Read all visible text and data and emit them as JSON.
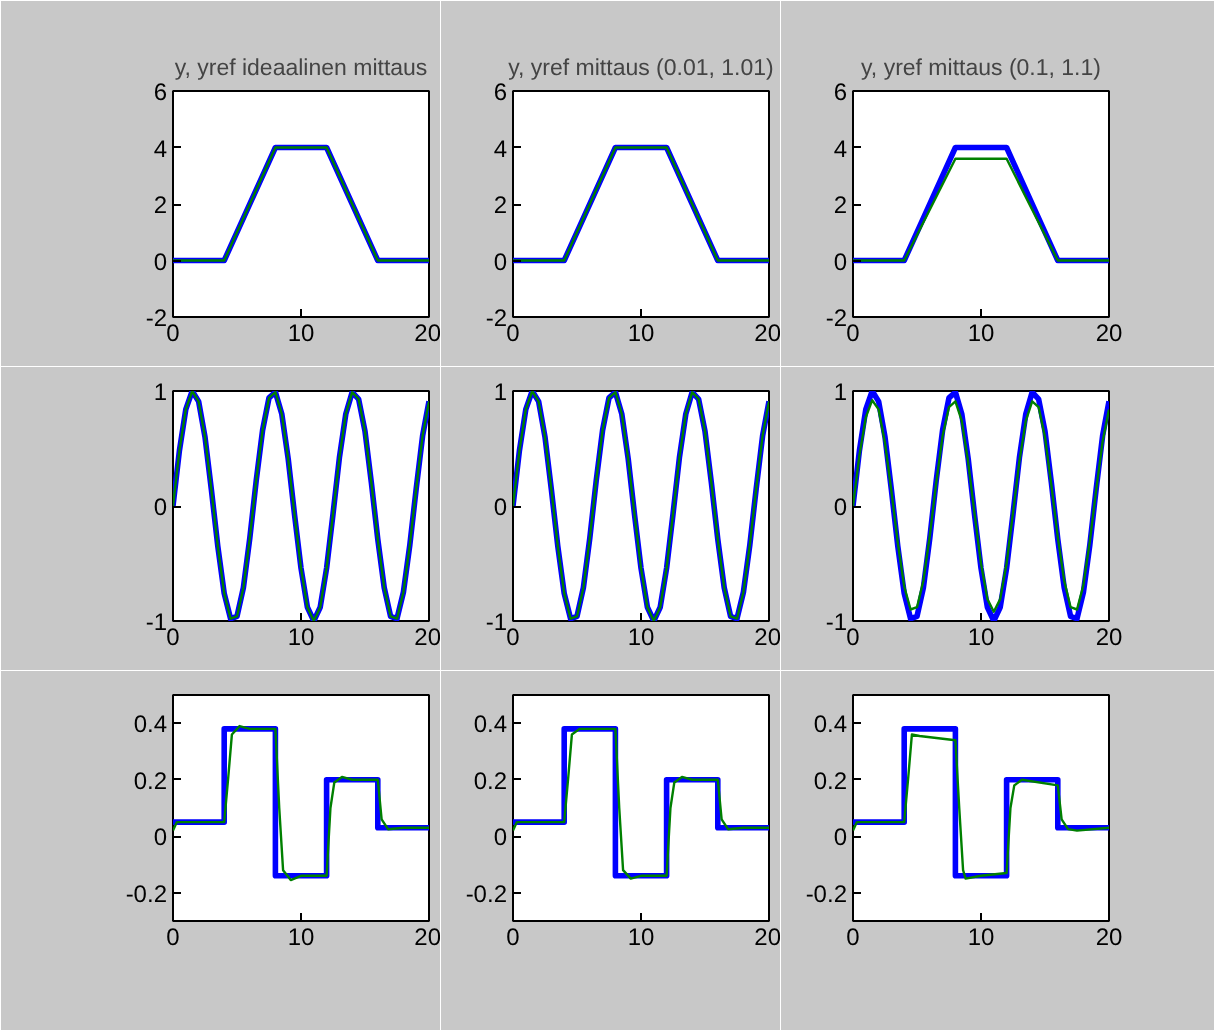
{
  "chart_data": [
    {
      "type": "line",
      "title": "y, yref ideaalinen mittaus",
      "xlim": [
        0,
        20
      ],
      "xticks": [
        0,
        10,
        20
      ],
      "ylim": [
        -2,
        6
      ],
      "yticks": [
        -2,
        0,
        2,
        4,
        6
      ],
      "series": [
        {
          "color": "#0000ff",
          "x": [
            0,
            4,
            8,
            12,
            16,
            20
          ],
          "values": [
            0,
            0,
            4,
            4,
            0,
            0
          ]
        },
        {
          "color": "#008000",
          "x": [
            0,
            4,
            8,
            12,
            16,
            20
          ],
          "values": [
            0,
            0,
            4,
            4,
            0,
            0
          ]
        }
      ]
    },
    {
      "type": "line",
      "title": "y, yref mittaus (0.01, 1.01)",
      "xlim": [
        0,
        20
      ],
      "xticks": [
        0,
        10,
        20
      ],
      "ylim": [
        -2,
        6
      ],
      "yticks": [
        -2,
        0,
        2,
        4,
        6
      ],
      "series": [
        {
          "color": "#0000ff",
          "x": [
            0,
            4,
            8,
            12,
            16,
            20
          ],
          "values": [
            0,
            0,
            4,
            4,
            0,
            0
          ]
        },
        {
          "color": "#008000",
          "x": [
            0,
            4,
            8,
            12,
            16,
            20
          ],
          "values": [
            0,
            0,
            4,
            4,
            0,
            0
          ]
        }
      ]
    },
    {
      "type": "line",
      "title": "y, yref mittaus (0.1, 1.1)",
      "xlim": [
        0,
        20
      ],
      "xticks": [
        0,
        10,
        20
      ],
      "ylim": [
        -2,
        6
      ],
      "yticks": [
        -2,
        0,
        2,
        4,
        6
      ],
      "series": [
        {
          "color": "#0000ff",
          "x": [
            0,
            4,
            8,
            12,
            16,
            20
          ],
          "values": [
            0,
            0,
            4,
            4,
            0,
            0
          ]
        },
        {
          "color": "#008000",
          "x": [
            0,
            4,
            8,
            12,
            16,
            20
          ],
          "values": [
            0,
            0,
            3.6,
            3.6,
            0,
            0
          ]
        }
      ]
    },
    {
      "type": "line",
      "xlim": [
        0,
        20
      ],
      "xticks": [
        0,
        10,
        20
      ],
      "ylim": [
        -1,
        1
      ],
      "yticks": [
        -1,
        0,
        1
      ],
      "x": [
        0,
        0.5,
        1,
        1.5,
        2,
        2.5,
        3,
        3.5,
        4,
        4.5,
        5,
        5.5,
        6,
        6.5,
        7,
        7.5,
        8,
        8.5,
        9,
        9.5,
        10,
        10.5,
        11,
        11.5,
        12,
        12.5,
        13,
        13.5,
        14,
        14.5,
        15,
        15.5,
        16,
        16.5,
        17,
        17.5,
        18,
        18.5,
        19,
        19.5,
        20
      ],
      "series": [
        {
          "color": "#0000ff",
          "values": [
            0,
            0.48,
            0.84,
            1.0,
            0.91,
            0.6,
            0.14,
            -0.35,
            -0.76,
            -0.98,
            -0.96,
            -0.71,
            -0.28,
            0.22,
            0.66,
            0.94,
            0.99,
            0.8,
            0.41,
            -0.08,
            -0.54,
            -0.88,
            -1.0,
            -0.88,
            -0.54,
            -0.07,
            0.42,
            0.8,
            0.99,
            0.93,
            0.65,
            0.2,
            -0.29,
            -0.71,
            -0.96,
            -0.98,
            -0.75,
            -0.34,
            0.15,
            0.61,
            0.91
          ]
        },
        {
          "color": "#008000",
          "values": [
            0,
            0.48,
            0.84,
            1.0,
            0.91,
            0.6,
            0.14,
            -0.35,
            -0.76,
            -0.98,
            -0.96,
            -0.71,
            -0.28,
            0.22,
            0.66,
            0.94,
            0.99,
            0.8,
            0.41,
            -0.08,
            -0.54,
            -0.88,
            -1.0,
            -0.88,
            -0.54,
            -0.07,
            0.42,
            0.8,
            0.99,
            0.93,
            0.65,
            0.2,
            -0.29,
            -0.71,
            -0.96,
            -0.98,
            -0.75,
            -0.34,
            0.15,
            0.61,
            0.91
          ]
        }
      ]
    },
    {
      "type": "line",
      "xlim": [
        0,
        20
      ],
      "xticks": [
        0,
        10,
        20
      ],
      "ylim": [
        -1,
        1
      ],
      "yticks": [
        -1,
        0,
        1
      ],
      "x": [
        0,
        0.5,
        1,
        1.5,
        2,
        2.5,
        3,
        3.5,
        4,
        4.5,
        5,
        5.5,
        6,
        6.5,
        7,
        7.5,
        8,
        8.5,
        9,
        9.5,
        10,
        10.5,
        11,
        11.5,
        12,
        12.5,
        13,
        13.5,
        14,
        14.5,
        15,
        15.5,
        16,
        16.5,
        17,
        17.5,
        18,
        18.5,
        19,
        19.5,
        20
      ],
      "series": [
        {
          "color": "#0000ff",
          "values": [
            0,
            0.48,
            0.84,
            1.0,
            0.91,
            0.6,
            0.14,
            -0.35,
            -0.76,
            -0.98,
            -0.96,
            -0.71,
            -0.28,
            0.22,
            0.66,
            0.94,
            0.99,
            0.8,
            0.41,
            -0.08,
            -0.54,
            -0.88,
            -1.0,
            -0.88,
            -0.54,
            -0.07,
            0.42,
            0.8,
            0.99,
            0.93,
            0.65,
            0.2,
            -0.29,
            -0.71,
            -0.96,
            -0.98,
            -0.75,
            -0.34,
            0.15,
            0.61,
            0.91
          ]
        },
        {
          "color": "#008000",
          "values": [
            0,
            0.48,
            0.84,
            1.0,
            0.91,
            0.6,
            0.14,
            -0.35,
            -0.76,
            -0.98,
            -0.96,
            -0.71,
            -0.28,
            0.22,
            0.66,
            0.94,
            0.99,
            0.8,
            0.41,
            -0.08,
            -0.54,
            -0.88,
            -1.0,
            -0.88,
            -0.54,
            -0.07,
            0.42,
            0.8,
            0.99,
            0.93,
            0.65,
            0.2,
            -0.29,
            -0.71,
            -0.96,
            -0.98,
            -0.75,
            -0.34,
            0.15,
            0.61,
            0.91
          ]
        }
      ]
    },
    {
      "type": "line",
      "xlim": [
        0,
        20
      ],
      "xticks": [
        0,
        10,
        20
      ],
      "ylim": [
        -1,
        1
      ],
      "yticks": [
        -1,
        0,
        1
      ],
      "x": [
        0,
        0.5,
        1,
        1.5,
        2,
        2.5,
        3,
        3.5,
        4,
        4.5,
        5,
        5.5,
        6,
        6.5,
        7,
        7.5,
        8,
        8.5,
        9,
        9.5,
        10,
        10.5,
        11,
        11.5,
        12,
        12.5,
        13,
        13.5,
        14,
        14.5,
        15,
        15.5,
        16,
        16.5,
        17,
        17.5,
        18,
        18.5,
        19,
        19.5,
        20
      ],
      "series": [
        {
          "color": "#0000ff",
          "values": [
            0,
            0.48,
            0.84,
            1.0,
            0.91,
            0.6,
            0.14,
            -0.35,
            -0.76,
            -0.98,
            -0.96,
            -0.71,
            -0.28,
            0.22,
            0.66,
            0.94,
            0.99,
            0.8,
            0.41,
            -0.08,
            -0.54,
            -0.88,
            -1.0,
            -0.88,
            -0.54,
            -0.07,
            0.42,
            0.8,
            0.99,
            0.93,
            0.65,
            0.2,
            -0.29,
            -0.71,
            -0.96,
            -0.98,
            -0.75,
            -0.34,
            0.15,
            0.61,
            0.91
          ]
        },
        {
          "color": "#008000",
          "values": [
            0,
            0.44,
            0.77,
            0.92,
            0.84,
            0.55,
            0.13,
            -0.32,
            -0.7,
            -0.9,
            -0.88,
            -0.65,
            -0.26,
            0.2,
            0.61,
            0.86,
            0.91,
            0.74,
            0.38,
            -0.07,
            -0.5,
            -0.81,
            -0.92,
            -0.81,
            -0.5,
            -0.06,
            0.39,
            0.74,
            0.91,
            0.86,
            0.6,
            0.18,
            -0.27,
            -0.65,
            -0.88,
            -0.9,
            -0.69,
            -0.31,
            0.14,
            0.56,
            0.84
          ]
        }
      ]
    },
    {
      "type": "line",
      "xlim": [
        0,
        20
      ],
      "xticks": [
        0,
        10,
        20
      ],
      "ylim": [
        -0.3,
        0.5
      ],
      "yticks": [
        -0.2,
        0,
        0.2,
        0.4
      ],
      "series": [
        {
          "color": "#0000ff",
          "x": [
            0,
            4,
            4,
            8,
            8,
            12,
            12,
            16,
            16,
            20
          ],
          "values": [
            0.05,
            0.05,
            0.38,
            0.38,
            -0.14,
            -0.14,
            0.2,
            0.2,
            0.03,
            0.03
          ]
        },
        {
          "color": "#008000",
          "x": [
            0,
            0.3,
            4,
            4.3,
            4.6,
            5.2,
            6,
            8,
            8.3,
            8.6,
            9.2,
            10,
            12,
            12.3,
            12.6,
            13.2,
            14,
            16,
            16.3,
            16.8,
            18,
            20
          ],
          "values": [
            0.02,
            0.05,
            0.05,
            0.2,
            0.36,
            0.39,
            0.38,
            0.38,
            0.1,
            -0.12,
            -0.155,
            -0.14,
            -0.14,
            0.1,
            0.19,
            0.21,
            0.2,
            0.2,
            0.06,
            0.025,
            0.03,
            0.03
          ]
        }
      ]
    },
    {
      "type": "line",
      "xlim": [
        0,
        20
      ],
      "xticks": [
        0,
        10,
        20
      ],
      "ylim": [
        -0.3,
        0.5
      ],
      "yticks": [
        -0.2,
        0,
        0.2,
        0.4
      ],
      "series": [
        {
          "color": "#0000ff",
          "x": [
            0,
            4,
            4,
            8,
            8,
            12,
            12,
            16,
            16,
            20
          ],
          "values": [
            0.05,
            0.05,
            0.38,
            0.38,
            -0.14,
            -0.14,
            0.2,
            0.2,
            0.03,
            0.03
          ]
        },
        {
          "color": "#008000",
          "x": [
            0,
            0.3,
            4,
            4.3,
            4.6,
            5.2,
            6,
            8,
            8.3,
            8.6,
            9.2,
            10,
            12,
            12.3,
            12.6,
            13.2,
            14,
            16,
            16.3,
            16.8,
            18,
            20
          ],
          "values": [
            0.02,
            0.05,
            0.05,
            0.2,
            0.36,
            0.38,
            0.38,
            0.38,
            0.1,
            -0.12,
            -0.15,
            -0.14,
            -0.14,
            0.1,
            0.19,
            0.21,
            0.2,
            0.2,
            0.06,
            0.025,
            0.03,
            0.03
          ]
        }
      ]
    },
    {
      "type": "line",
      "xlim": [
        0,
        20
      ],
      "xticks": [
        0,
        10,
        20
      ],
      "ylim": [
        -0.3,
        0.5
      ],
      "yticks": [
        -0.2,
        0,
        0.2,
        0.4
      ],
      "series": [
        {
          "color": "#0000ff",
          "x": [
            0,
            4,
            4,
            8,
            8,
            12,
            12,
            16,
            16,
            20
          ],
          "values": [
            0.05,
            0.05,
            0.38,
            0.38,
            -0.14,
            -0.14,
            0.2,
            0.2,
            0.03,
            0.03
          ]
        },
        {
          "color": "#008000",
          "x": [
            0,
            0.3,
            4,
            4.3,
            4.6,
            5.2,
            8,
            8.3,
            8.6,
            8.8,
            10,
            12,
            12.3,
            12.6,
            13.2,
            16,
            16.3,
            16.8,
            17.5,
            20
          ],
          "values": [
            0.02,
            0.05,
            0.05,
            0.2,
            0.36,
            0.355,
            0.34,
            0.1,
            -0.12,
            -0.15,
            -0.14,
            -0.13,
            0.1,
            0.18,
            0.2,
            0.18,
            0.06,
            0.025,
            0.02,
            0.03
          ]
        }
      ]
    }
  ]
}
